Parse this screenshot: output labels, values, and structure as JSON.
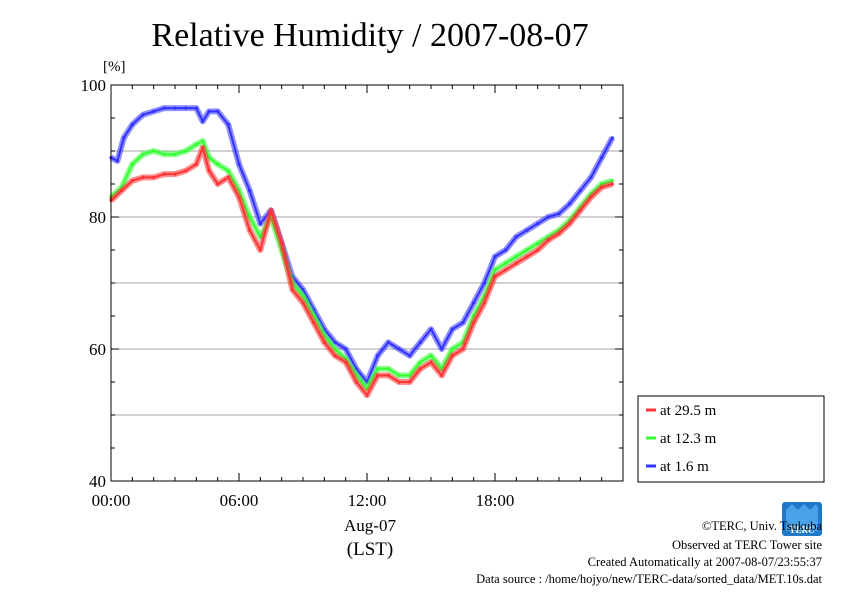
{
  "chart_data": {
    "type": "line",
    "title": "Relative Humidity / 2007-08-07",
    "yunit": "[%]",
    "ylim": [
      40,
      100
    ],
    "yticks": [
      40,
      60,
      80,
      100
    ],
    "xlim": [
      0,
      24
    ],
    "xticks": [
      {
        "value": 0,
        "label": "00:00"
      },
      {
        "value": 6,
        "label": "06:00"
      },
      {
        "value": 12,
        "label": "12:00"
      },
      {
        "value": 18,
        "label": "18:00"
      }
    ],
    "xdate": "Aug-07",
    "xunit": "(LST)",
    "grid": true,
    "legend_position": "right",
    "series": [
      {
        "name": "at 29.5 m",
        "color": "#ff3333",
        "x": [
          0,
          0.5,
          1,
          1.5,
          2,
          2.5,
          3,
          3.5,
          4,
          4.3,
          4.6,
          5,
          5.5,
          6,
          6.5,
          7,
          7.5,
          8,
          8.5,
          9,
          9.5,
          10,
          10.5,
          11,
          11.5,
          12,
          12.5,
          13,
          13.5,
          14,
          14.5,
          15,
          15.5,
          16,
          16.5,
          17,
          17.5,
          18,
          18.5,
          19,
          19.5,
          20,
          20.5,
          21,
          21.5,
          22,
          22.5,
          23,
          23.5
        ],
        "y": [
          82.5,
          84,
          85.5,
          86,
          86,
          86.5,
          86.5,
          87,
          88,
          90.5,
          87,
          85,
          86,
          83,
          78,
          75,
          81,
          76,
          69,
          67,
          64,
          61,
          59,
          58,
          55,
          53,
          56,
          56,
          55,
          55,
          57,
          58,
          56,
          59,
          60,
          64,
          67,
          71,
          72,
          73,
          74,
          75,
          76.5,
          77.5,
          79,
          81,
          83,
          84.5,
          85
        ]
      },
      {
        "name": "at 12.3 m",
        "color": "#33ff33",
        "x": [
          0,
          0.5,
          1,
          1.5,
          2,
          2.5,
          3,
          3.5,
          4,
          4.3,
          4.6,
          5,
          5.5,
          6,
          6.5,
          7,
          7.5,
          8,
          8.5,
          9,
          9.5,
          10,
          10.5,
          11,
          11.5,
          12,
          12.5,
          13,
          13.5,
          14,
          14.5,
          15,
          15.5,
          16,
          16.5,
          17,
          17.5,
          18,
          18.5,
          19,
          19.5,
          20,
          20.5,
          21,
          21.5,
          22,
          22.5,
          23,
          23.5
        ],
        "y": [
          83,
          84.5,
          88,
          89.5,
          90,
          89.5,
          89.5,
          90,
          91,
          91.5,
          89,
          88,
          87,
          84,
          80,
          77,
          80,
          75,
          70,
          68,
          65,
          62,
          60,
          58.5,
          56,
          54,
          57,
          57,
          56,
          56,
          58,
          59,
          57,
          60,
          61,
          65,
          68,
          72,
          73,
          74,
          75,
          76,
          77,
          78,
          79.5,
          81.5,
          83.5,
          85,
          85.5
        ]
      },
      {
        "name": "at 1.6 m",
        "color": "#3333ff",
        "x": [
          0,
          0.3,
          0.6,
          1,
          1.5,
          2,
          2.5,
          3,
          3.5,
          4,
          4.3,
          4.6,
          5,
          5.5,
          6,
          6.5,
          7,
          7.5,
          8,
          8.5,
          9,
          9.5,
          10,
          10.5,
          11,
          11.5,
          12,
          12.5,
          13,
          13.5,
          14,
          14.5,
          15,
          15.5,
          16,
          16.5,
          17,
          17.5,
          18,
          18.5,
          19,
          19.5,
          20,
          20.5,
          21,
          21.5,
          22,
          22.5,
          23,
          23.5
        ],
        "y": [
          89,
          88.5,
          92,
          94,
          95.5,
          96,
          96.5,
          96.5,
          96.5,
          96.5,
          94.5,
          96,
          96,
          94,
          88,
          84,
          79,
          81,
          76,
          71,
          69,
          66,
          63,
          61,
          60,
          57,
          55,
          59,
          61,
          60,
          59,
          61,
          63,
          60,
          63,
          64,
          67,
          70,
          74,
          75,
          77,
          78,
          79,
          80,
          80.5,
          82,
          84,
          86,
          89,
          92
        ]
      }
    ]
  },
  "credits": {
    "copyright": "©TERC, Univ. Tsukuba",
    "observed": "Observed at TERC Tower site",
    "created": "Created Automatically at 2007-08-07/23:55:37",
    "source": "Data source : /home/hojyo/new/TERC-data/sorted_data/MET.10s.dat",
    "logo_text": "TERC"
  }
}
